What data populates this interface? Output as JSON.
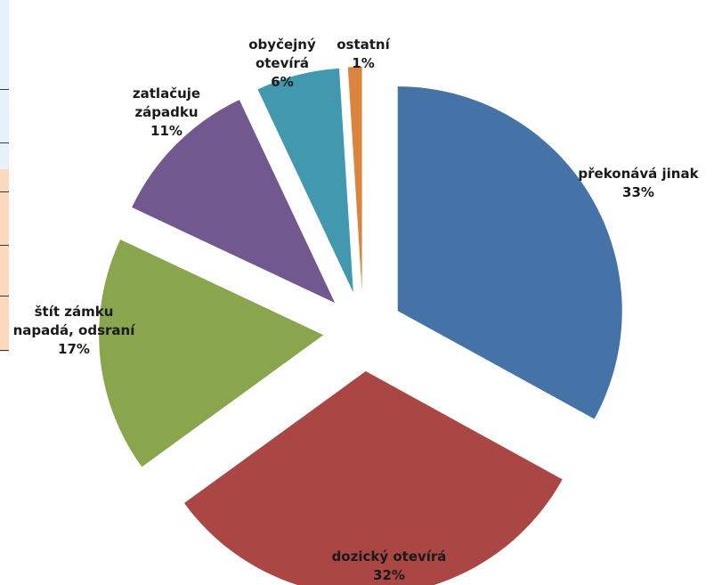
{
  "chart_data": {
    "type": "pie",
    "exploded": true,
    "title": "",
    "slices": [
      {
        "label": [
          "překonává jinak"
        ],
        "percent_label": "33%",
        "value": 33,
        "color": "#4572a7"
      },
      {
        "label": [
          "dozický otevírá"
        ],
        "percent_label": "32%",
        "value": 32,
        "color": "#aa4643"
      },
      {
        "label": [
          "štít zámku",
          "napadá, odsraní"
        ],
        "percent_label": "17%",
        "value": 17,
        "color": "#89a54e"
      },
      {
        "label": [
          "zatlačuje",
          "západku"
        ],
        "percent_label": "11%",
        "value": 11,
        "color": "#71588f"
      },
      {
        "label": [
          "obyčejný",
          "otevírá"
        ],
        "percent_label": "6%",
        "value": 6,
        "color": "#4198af"
      },
      {
        "label": [
          "ostatní"
        ],
        "percent_label": "1%",
        "value": 1,
        "color": "#db843d"
      }
    ]
  }
}
